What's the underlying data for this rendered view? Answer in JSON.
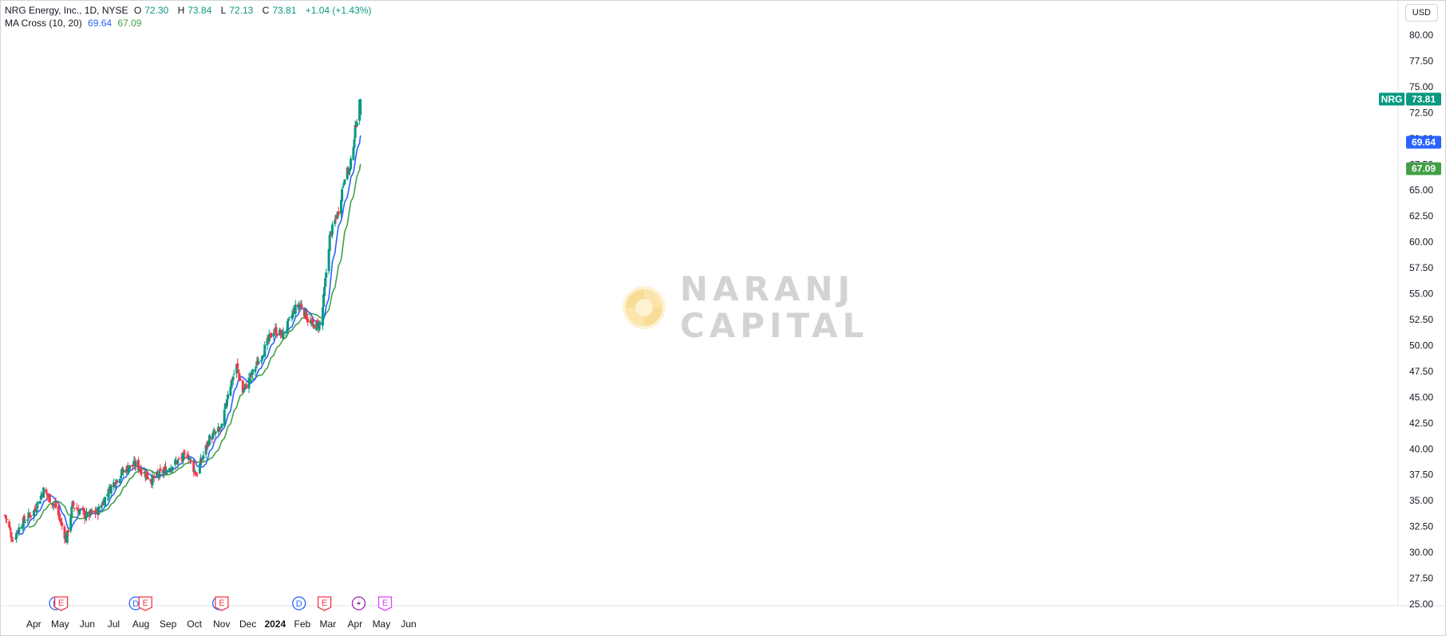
{
  "legend": {
    "symbol": "NRG Energy, Inc., 1D, NYSE",
    "open_label": "O",
    "open": "72.30",
    "high_label": "H",
    "high": "73.84",
    "low_label": "L",
    "low": "72.13",
    "close_label": "C",
    "close": "73.81",
    "change": "+1.04 (+1.43%)",
    "indicator": "MA Cross (10, 20)",
    "ma_fast": "69.64",
    "ma_slow": "67.09"
  },
  "currency_button": "USD",
  "watermark": {
    "line1": "NARANJ",
    "line2": "CAPITAL"
  },
  "price_tags": [
    {
      "name": "NRG",
      "value": "73.81",
      "color": "#089981"
    },
    {
      "name": "",
      "value": "69.64",
      "color": "#2962ff"
    },
    {
      "name": "",
      "value": "67.09",
      "color": "#43a047"
    }
  ],
  "colors": {
    "up": "#089981",
    "down": "#f23645",
    "ma_fast": "#2962ff",
    "ma_slow": "#43a047",
    "dividend": "#2962ff",
    "earnings": "#f23645",
    "split": "#9c27b0",
    "future_earnings": "#e040fb"
  },
  "chart_data": {
    "type": "candlestick",
    "symbol": "NRG",
    "y_ticks": [
      "80.00",
      "77.50",
      "75.00",
      "72.50",
      "70.00",
      "67.50",
      "65.00",
      "62.50",
      "60.00",
      "57.50",
      "55.00",
      "52.50",
      "50.00",
      "47.50",
      "45.00",
      "42.50",
      "40.00",
      "37.50",
      "35.00",
      "32.50",
      "30.00",
      "27.50",
      "25.00"
    ],
    "ylim": [
      25.0,
      80.0
    ],
    "x_ticks": [
      "Apr",
      "May",
      "Jun",
      "Jul",
      "Aug",
      "Sep",
      "Oct",
      "Nov",
      "Dec",
      "2024",
      "Feb",
      "Mar",
      "Apr",
      "May",
      "Jun"
    ],
    "close_anchors": [
      [
        "2023-03-01",
        33.6
      ],
      [
        "2023-03-10",
        31.2
      ],
      [
        "2023-03-20",
        32.8
      ],
      [
        "2023-04-03",
        34.0
      ],
      [
        "2023-04-14",
        36.0
      ],
      [
        "2023-04-28",
        34.4
      ],
      [
        "2023-05-10",
        31.2
      ],
      [
        "2023-05-17",
        34.6
      ],
      [
        "2023-06-01",
        33.5
      ],
      [
        "2023-06-15",
        34.0
      ],
      [
        "2023-07-01",
        36.5
      ],
      [
        "2023-07-15",
        38.0
      ],
      [
        "2023-07-28",
        38.5
      ],
      [
        "2023-08-15",
        37.0
      ],
      [
        "2023-09-01",
        38.0
      ],
      [
        "2023-09-25",
        39.5
      ],
      [
        "2023-10-05",
        37.5
      ],
      [
        "2023-10-20",
        41.0
      ],
      [
        "2023-11-03",
        42.0
      ],
      [
        "2023-11-10",
        45.5
      ],
      [
        "2023-11-20",
        48.0
      ],
      [
        "2023-11-27",
        45.5
      ],
      [
        "2023-12-15",
        48.5
      ],
      [
        "2024-01-01",
        51.5
      ],
      [
        "2024-01-12",
        51.0
      ],
      [
        "2024-01-25",
        53.5
      ],
      [
        "2024-02-01",
        54.0
      ],
      [
        "2024-02-12",
        52.0
      ],
      [
        "2024-02-24",
        52.0
      ],
      [
        "2024-03-05",
        60.5
      ],
      [
        "2024-03-15",
        63.0
      ],
      [
        "2024-03-22",
        66.5
      ],
      [
        "2024-03-28",
        67.0
      ],
      [
        "2024-04-04",
        71.5
      ],
      [
        "2024-04-09",
        73.81
      ]
    ],
    "last_bar": {
      "open": 72.3,
      "high": 73.84,
      "low": 72.13,
      "close": 73.81
    },
    "series": [
      {
        "name": "MA 10",
        "last": 69.64
      },
      {
        "name": "MA 20",
        "last": 67.09
      }
    ],
    "events": [
      {
        "type": "D",
        "date": "2023-04-28"
      },
      {
        "type": "E",
        "date": "2023-05-04"
      },
      {
        "type": "D",
        "date": "2023-07-28"
      },
      {
        "type": "E",
        "date": "2023-08-08"
      },
      {
        "type": "D",
        "date": "2023-10-31"
      },
      {
        "type": "E",
        "date": "2023-11-03"
      },
      {
        "type": "D",
        "date": "2024-01-30"
      },
      {
        "type": "E",
        "date": "2024-02-28"
      },
      {
        "type": "S",
        "date": "2024-04-07"
      },
      {
        "type": "E",
        "date": "2024-05-07"
      }
    ]
  }
}
